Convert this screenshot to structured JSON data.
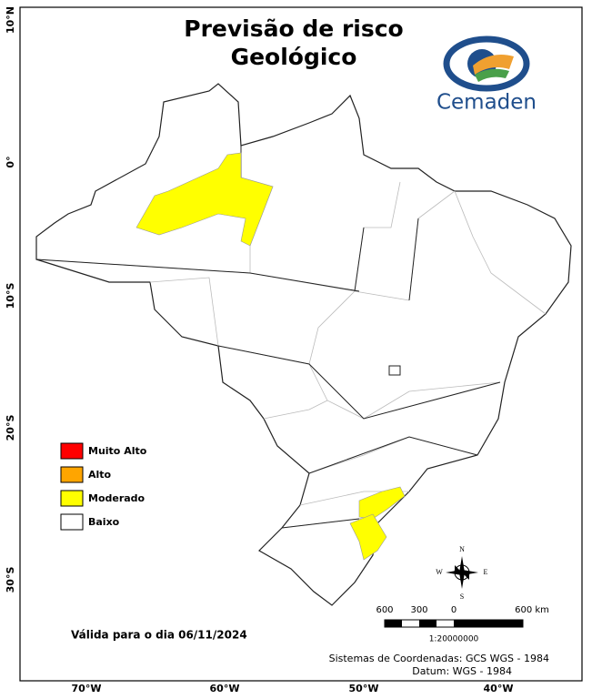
{
  "header": {
    "title_lines": [
      "Previsão de risco",
      "Geológico"
    ],
    "logo_text": "Cemaden"
  },
  "latitude_labels": [
    "10°N",
    "0°",
    "10°S",
    "20°S",
    "30°S"
  ],
  "longitude_labels": [
    "70°W",
    "60°W",
    "50°W",
    "40°W"
  ],
  "legend": {
    "items": [
      {
        "label": "Muito Alto",
        "color": "#ff0000"
      },
      {
        "label": "Alto",
        "color": "#ffa500"
      },
      {
        "label": "Moderado",
        "color": "#ffff00"
      },
      {
        "label": "Baixo",
        "color": "#ffffff"
      }
    ]
  },
  "validity": "Válida para o dia 06/11/2024",
  "compass": {
    "north": "N",
    "south": "S",
    "east": "E",
    "west": "W"
  },
  "scale_bar": {
    "labels": [
      "600",
      "300",
      "0",
      "600 km"
    ],
    "ratio": "1:20000000"
  },
  "footer": [
    "Sistemas de Coordenadas: GCS WGS - 1984",
    "Datum: WGS - 1984"
  ]
}
